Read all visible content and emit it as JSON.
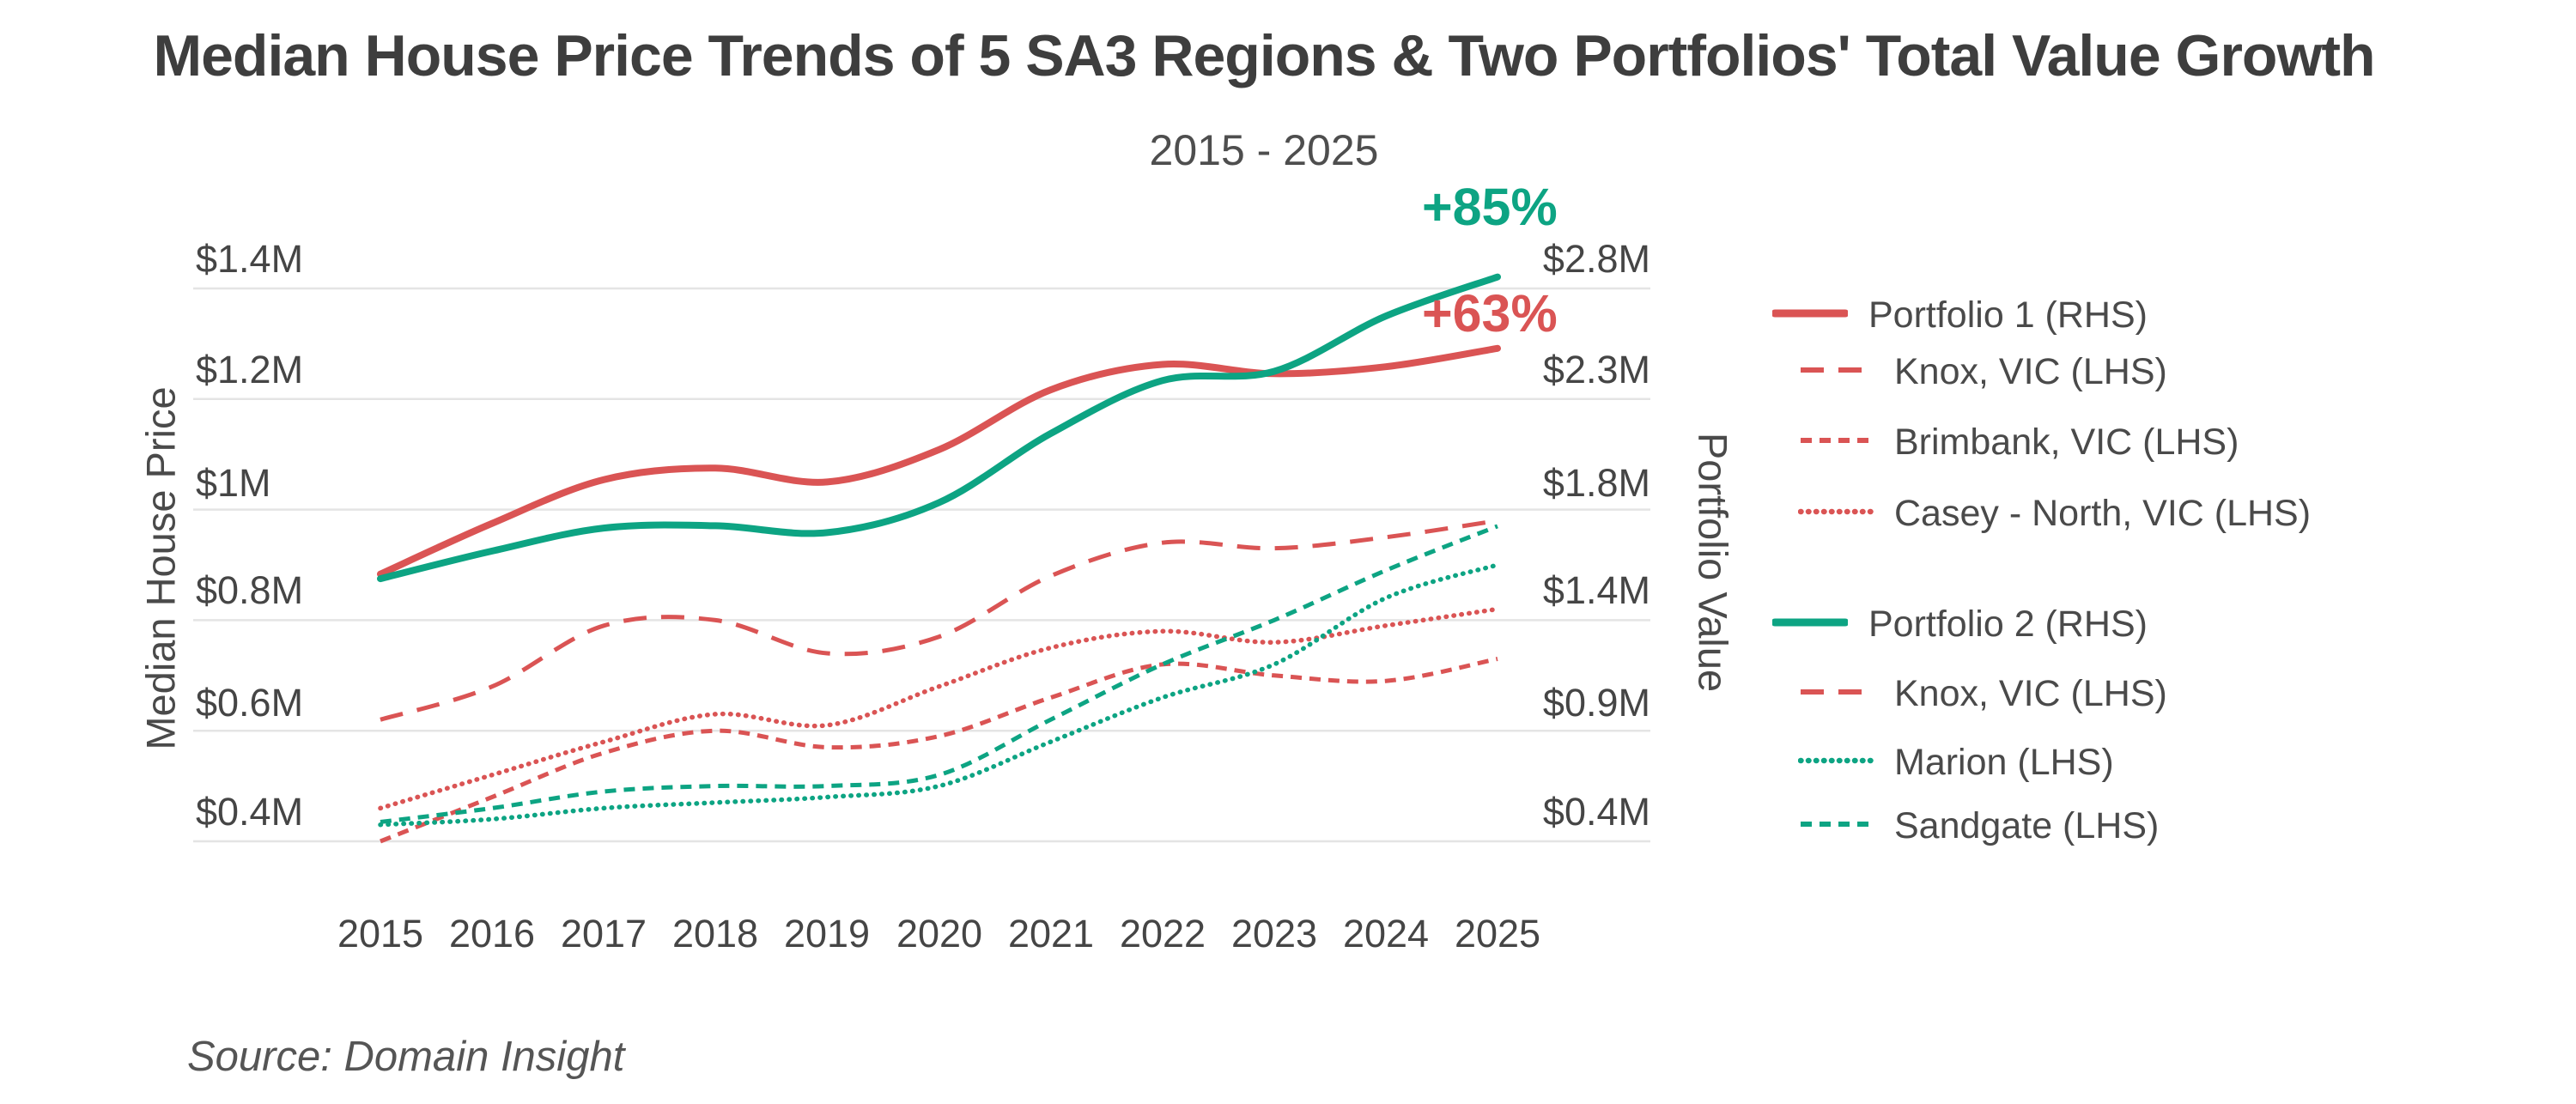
{
  "title": "Median House Price Trends of 5 SA3 Regions & Two Portfolios' Total Value Growth",
  "subtitle": "2015 - 2025",
  "source": "Source: Domain Insight",
  "palette": {
    "red": "#DA5454",
    "green": "#0DA483",
    "grid": "#E4E4E4",
    "title_text": "#3E3E3E",
    "tick_text": "#454545"
  },
  "annotations": [
    {
      "text": "+85%",
      "color": "green",
      "for_series": "portfolio2"
    },
    {
      "text": "+63%",
      "color": "red",
      "for_series": "portfolio1"
    }
  ],
  "axes": {
    "x": {
      "years": [
        "2015",
        "2016",
        "2017",
        "2018",
        "2019",
        "2020",
        "2021",
        "2022",
        "2023",
        "2024",
        "2025"
      ]
    },
    "left": {
      "title": "Median House Price",
      "labels": [
        "$1.4M",
        "$1.2M",
        "$1M",
        "$0.8M",
        "$0.6M",
        "$0.4M"
      ],
      "values": [
        1.4,
        1.2,
        1.0,
        0.8,
        0.6,
        0.4
      ]
    },
    "right": {
      "title": "Portfolio Value",
      "labels": [
        "$2.8M",
        "$2.3M",
        "$1.8M",
        "$1.4M",
        "$0.9M",
        "$0.4M"
      ]
    }
  },
  "legend": {
    "groups": [
      {
        "items": [
          {
            "series": "portfolio1",
            "label": "Portfolio 1 (RHS)",
            "indent": false
          },
          {
            "series": "knox",
            "label": "Knox, VIC (LHS)",
            "indent": true
          },
          {
            "series": "brimbank",
            "label": "Brimbank, VIC (LHS)",
            "indent": true
          },
          {
            "series": "casey",
            "label": "Casey - North, VIC (LHS)",
            "indent": true
          }
        ]
      },
      {
        "items": [
          {
            "series": "portfolio2",
            "label": "Portfolio 2 (RHS)",
            "indent": false
          },
          {
            "series": "knox",
            "label": "Knox, VIC (LHS)",
            "indent": true
          },
          {
            "series": "marion",
            "label": "Marion (LHS)",
            "indent": true
          },
          {
            "series": "sandgate",
            "label": "Sandgate (LHS)",
            "indent": true
          }
        ]
      }
    ]
  },
  "chart_data": {
    "type": "line",
    "title": "Median House Price Trends of 5 SA3 Regions & Two Portfolios' Total Value Growth",
    "subtitle": "2015 - 2025",
    "x": [
      2015,
      2016,
      2017,
      2018,
      2019,
      2020,
      2021,
      2022,
      2023,
      2024,
      2025
    ],
    "xlabel": "",
    "ylabel_left": "Median House Price",
    "ylabel_right": "Portfolio Value",
    "left_ylim": [
      0.4,
      1.4
    ],
    "right_ylim": [
      0.4,
      2.8
    ],
    "units": "AUD millions",
    "grid": true,
    "legend_position": "right",
    "gridlines_left_values": [
      1.4,
      1.2,
      1.0,
      0.8,
      0.6,
      0.4
    ],
    "series": [
      {
        "key": "portfolio1",
        "name": "Portfolio 1 (RHS)",
        "axis": "right",
        "color": "red",
        "style": "solid",
        "values": [
          1.56,
          1.78,
          1.97,
          2.02,
          1.96,
          2.1,
          2.36,
          2.47,
          2.43,
          2.46,
          2.54
        ]
      },
      {
        "key": "knox",
        "name": "Knox, VIC (LHS)",
        "axis": "left",
        "color": "red",
        "style": "long-dash",
        "values": [
          0.62,
          0.68,
          0.79,
          0.8,
          0.74,
          0.77,
          0.88,
          0.94,
          0.93,
          0.95,
          0.98
        ]
      },
      {
        "key": "brimbank",
        "name": "Brimbank, VIC (LHS)",
        "axis": "left",
        "color": "red",
        "style": "short-dash",
        "values": [
          0.4,
          0.48,
          0.56,
          0.6,
          0.57,
          0.59,
          0.66,
          0.72,
          0.7,
          0.69,
          0.73
        ]
      },
      {
        "key": "casey",
        "name": "Casey - North, VIC (LHS)",
        "axis": "left",
        "color": "red",
        "style": "dotted",
        "values": [
          0.46,
          0.52,
          0.58,
          0.63,
          0.61,
          0.68,
          0.75,
          0.78,
          0.76,
          0.79,
          0.82
        ]
      },
      {
        "key": "portfolio2",
        "name": "Portfolio 2 (RHS)",
        "axis": "right",
        "color": "green",
        "style": "solid",
        "values": [
          1.54,
          1.66,
          1.76,
          1.77,
          1.74,
          1.87,
          2.17,
          2.4,
          2.44,
          2.68,
          2.85
        ]
      },
      {
        "key": "marion",
        "name": "Marion (LHS)",
        "axis": "left",
        "color": "green",
        "style": "dotted",
        "values": [
          0.43,
          0.44,
          0.46,
          0.47,
          0.48,
          0.5,
          0.58,
          0.66,
          0.72,
          0.84,
          0.9
        ]
      },
      {
        "key": "sandgate",
        "name": "Sandgate (LHS)",
        "axis": "left",
        "color": "green",
        "style": "short-dash",
        "values": [
          0.435,
          0.46,
          0.49,
          0.5,
          0.5,
          0.52,
          0.62,
          0.72,
          0.8,
          0.89,
          0.97
        ]
      }
    ],
    "growth_annotations": [
      {
        "series": "portfolio2",
        "text": "+85%"
      },
      {
        "series": "portfolio1",
        "text": "+63%"
      }
    ]
  }
}
